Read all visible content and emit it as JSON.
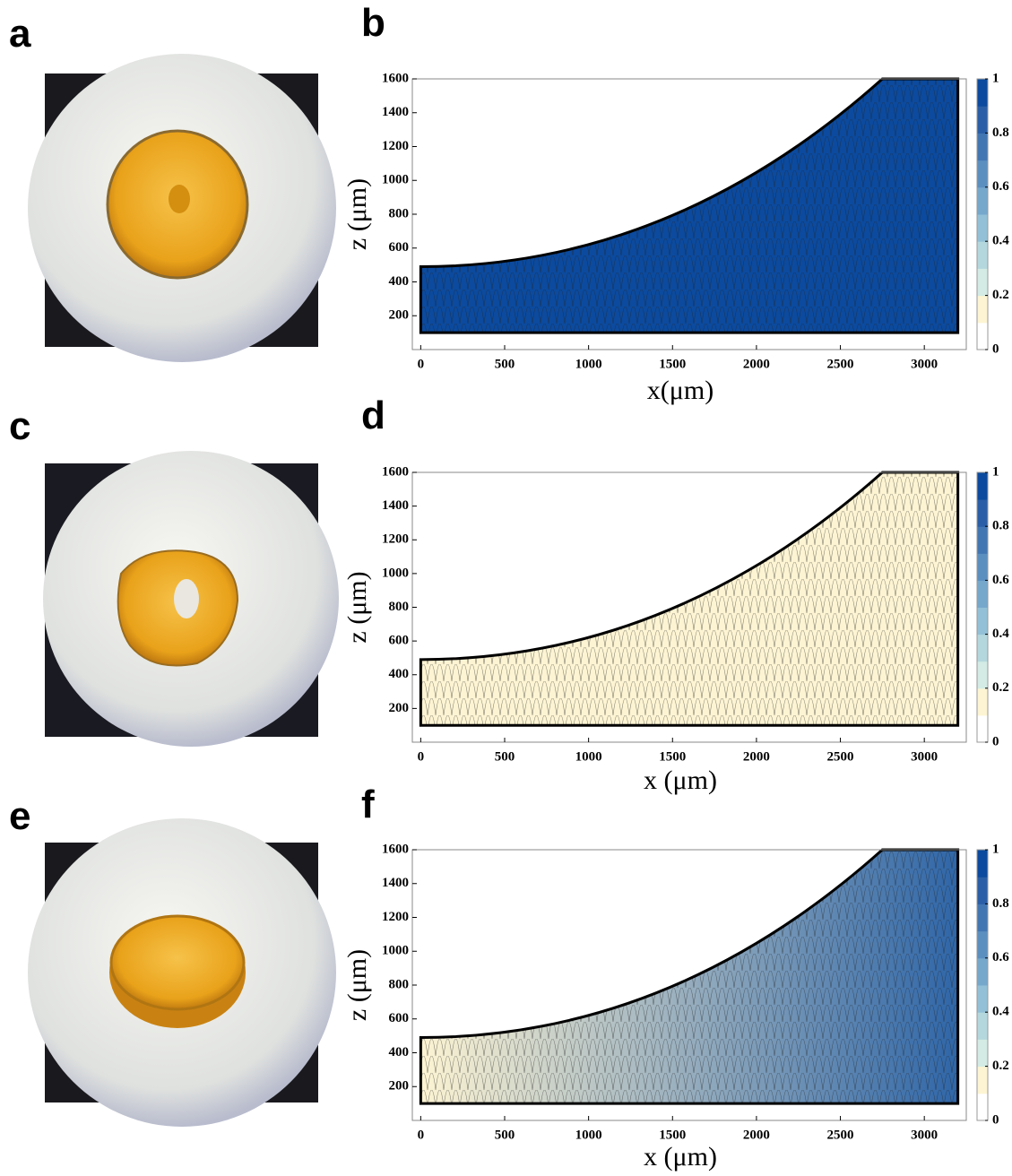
{
  "photos": [
    {
      "label": "a"
    },
    {
      "label": "c"
    },
    {
      "label": "e"
    }
  ],
  "chart_data": [
    {
      "type": "contour",
      "label": "b",
      "xlabel": "x(μm)",
      "ylabel": "z (μm)",
      "xlim": [
        -50,
        3250
      ],
      "xticks": [
        0,
        500,
        1000,
        1500,
        2000,
        2500,
        3000
      ],
      "ylim": [
        0,
        1600
      ],
      "yticks": [
        200,
        400,
        600,
        800,
        1000,
        1200,
        1400,
        1600
      ],
      "clim": [
        0,
        1
      ],
      "cticks": [
        0,
        0.2,
        0.4,
        0.6,
        0.8,
        1
      ],
      "colormap": [
        "#ffffff",
        "#fdf4d3",
        "#d3ebe4",
        "#b4d7dd",
        "#93c0d6",
        "#76a8cc",
        "#5b8fc0",
        "#4276b3",
        "#2a5ea6",
        "#0b4a9e"
      ],
      "fill": [
        "#0b4a9e",
        "#0b4a9e"
      ]
    },
    {
      "type": "contour",
      "label": "d",
      "xlabel": "x (μm)",
      "ylabel": "z (μm)",
      "xlim": [
        -50,
        3250
      ],
      "xticks": [
        0,
        500,
        1000,
        1500,
        2000,
        2500,
        3000
      ],
      "ylim": [
        0,
        1600
      ],
      "yticks": [
        200,
        400,
        600,
        800,
        1000,
        1200,
        1400,
        1600
      ],
      "clim": [
        0,
        1
      ],
      "cticks": [
        0,
        0.2,
        0.4,
        0.6,
        0.8,
        1
      ],
      "colormap": [
        "#ffffff",
        "#fdf4d3",
        "#d3ebe4",
        "#b4d7dd",
        "#93c0d6",
        "#76a8cc",
        "#5b8fc0",
        "#4276b3",
        "#2a5ea6",
        "#0b4a9e"
      ],
      "fill": [
        "#fdf4d3",
        "#fdf4d3"
      ]
    },
    {
      "type": "contour",
      "label": "f",
      "xlabel": "x (μm)",
      "ylabel": "z (μm)",
      "xlim": [
        -50,
        3250
      ],
      "xticks": [
        0,
        500,
        1000,
        1500,
        2000,
        2500,
        3000
      ],
      "ylim": [
        0,
        1600
      ],
      "yticks": [
        200,
        400,
        600,
        800,
        1000,
        1200,
        1400,
        1600
      ],
      "clim": [
        0,
        1
      ],
      "cticks": [
        0,
        0.2,
        0.4,
        0.6,
        0.8,
        1
      ],
      "colormap": [
        "#ffffff",
        "#fdf4d3",
        "#d3ebe4",
        "#b4d7dd",
        "#93c0d6",
        "#76a8cc",
        "#5b8fc0",
        "#4276b3",
        "#2a5ea6",
        "#0b4a9e"
      ],
      "fill": [
        "#fdf4d3",
        "#2f66a8"
      ]
    }
  ]
}
